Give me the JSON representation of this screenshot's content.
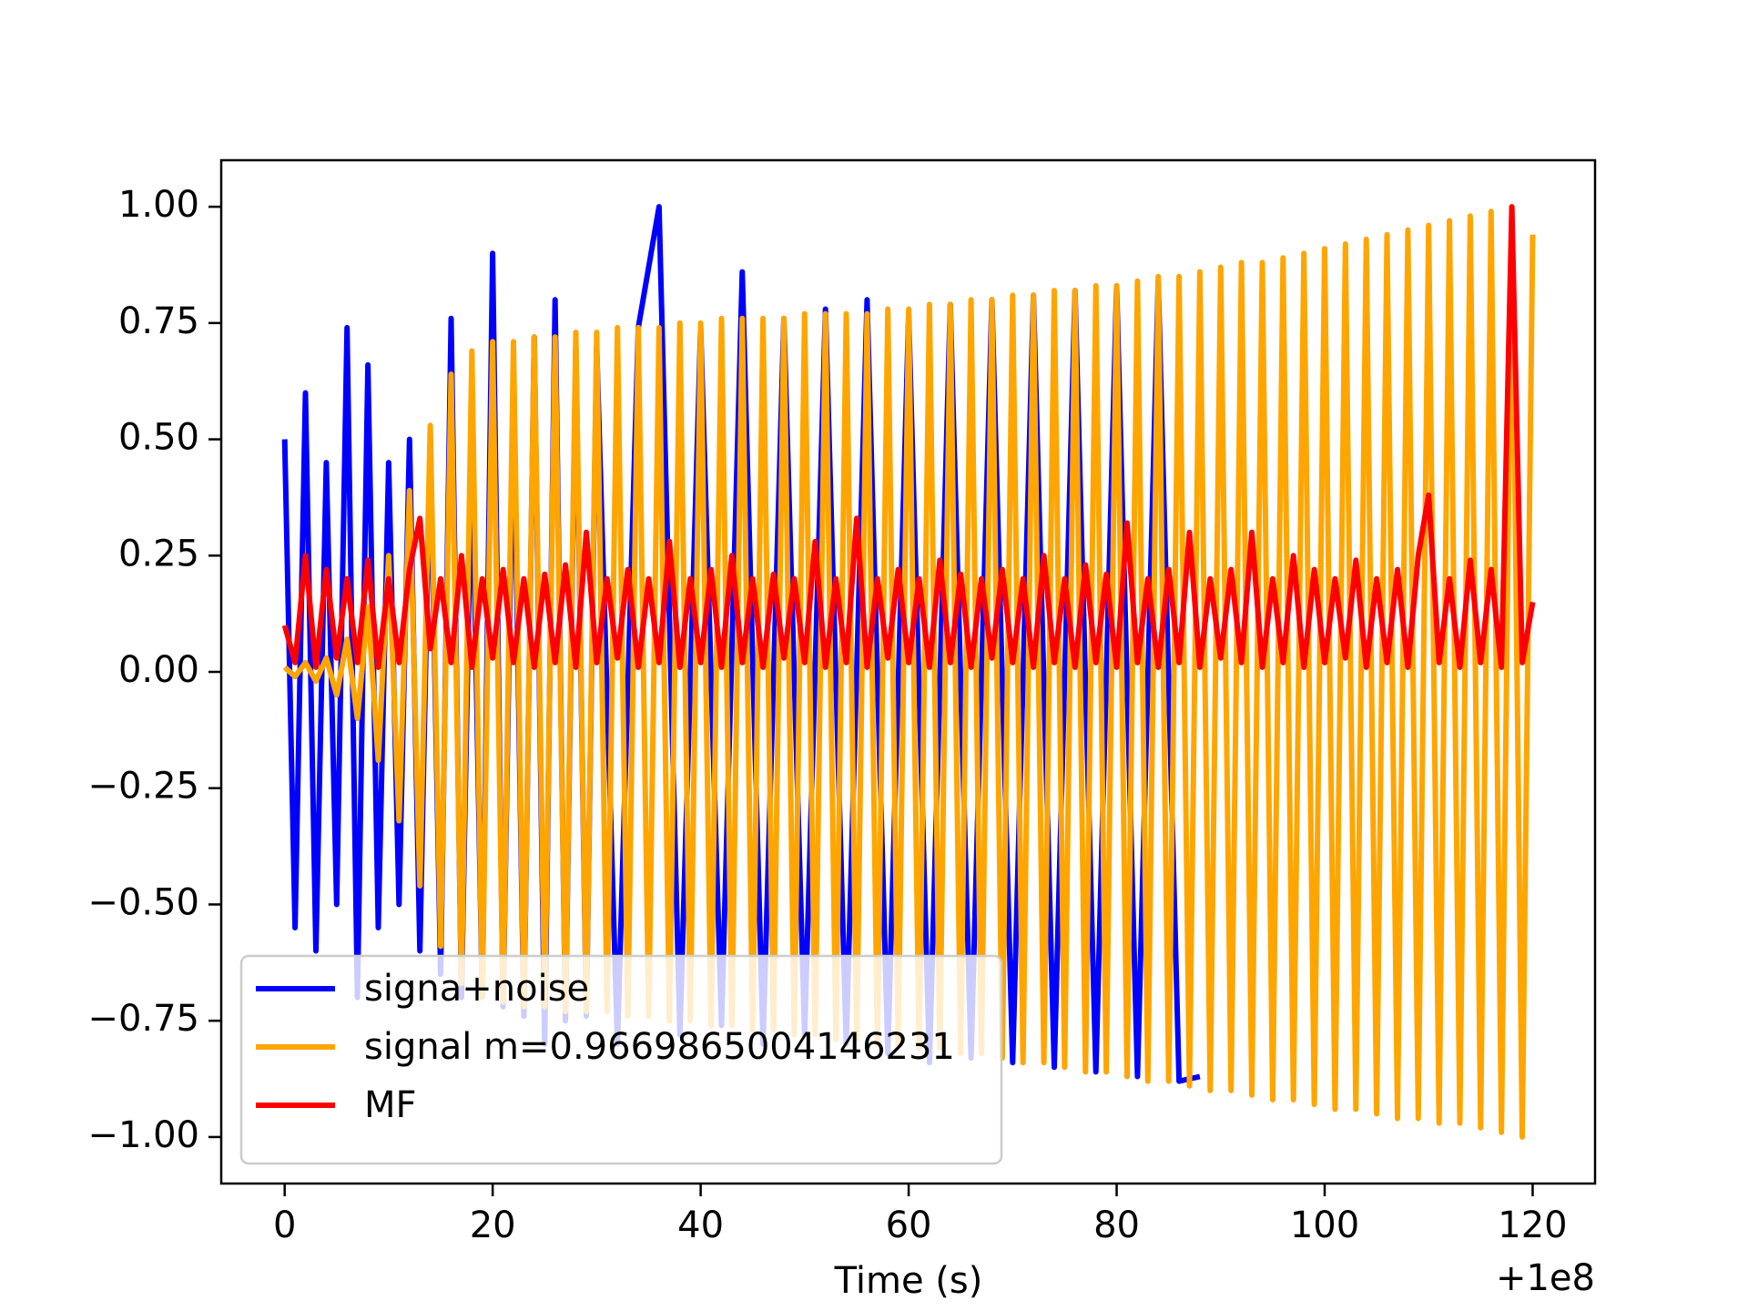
{
  "chart_data": {
    "type": "line",
    "xlabel": "Time (s)",
    "x_offset_label": "+1e8",
    "xlim": [
      -6.1,
      126
    ],
    "xticks": [
      0,
      20,
      40,
      60,
      80,
      100,
      120
    ],
    "ylim": [
      -1.1,
      1.1
    ],
    "yticks": [
      {
        "value": -1.0,
        "label": "−1.00"
      },
      {
        "value": -0.75,
        "label": "−0.75"
      },
      {
        "value": -0.5,
        "label": "−0.50"
      },
      {
        "value": -0.25,
        "label": "−0.25"
      },
      {
        "value": 0.0,
        "label": "0.00"
      },
      {
        "value": 0.25,
        "label": "0.25"
      },
      {
        "value": 0.5,
        "label": "0.50"
      },
      {
        "value": 0.75,
        "label": "0.75"
      },
      {
        "value": 1.0,
        "label": "1.00"
      }
    ],
    "grid": false,
    "legend": "lower left",
    "series": [
      {
        "name": "signa+noise",
        "color": "#0000ff",
        "x": [
          0,
          1,
          2,
          3,
          4,
          5,
          6,
          7,
          8,
          9,
          10,
          11,
          12,
          13,
          14,
          15,
          16,
          17,
          18,
          19,
          20,
          21,
          22,
          23,
          24,
          25,
          26,
          27,
          28,
          29,
          30,
          32,
          34,
          36,
          38,
          40,
          42,
          44,
          46,
          48,
          50,
          52,
          54,
          56,
          58,
          60,
          62,
          64,
          66,
          68,
          70,
          72,
          74,
          76,
          78,
          80,
          82,
          84,
          86,
          88
        ],
        "values": [
          0.5,
          -0.55,
          0.6,
          -0.6,
          0.45,
          -0.5,
          0.74,
          -0.7,
          0.66,
          -0.55,
          0.45,
          -0.5,
          0.5,
          -0.6,
          0.5,
          -0.65,
          0.76,
          -0.7,
          0.5,
          -0.7,
          0.9,
          -0.72,
          0.6,
          -0.74,
          0.72,
          -0.8,
          0.8,
          -0.75,
          0.7,
          -0.74,
          0.7,
          -0.8,
          0.74,
          1.0,
          -0.78,
          0.74,
          -0.76,
          0.86,
          -0.8,
          0.76,
          -0.78,
          0.78,
          -0.8,
          0.8,
          -0.82,
          0.77,
          -0.84,
          0.79,
          -0.83,
          0.8,
          -0.84,
          0.81,
          -0.85,
          0.82,
          -0.86,
          0.83,
          -0.87,
          0.84,
          -0.88,
          -0.87
        ]
      },
      {
        "name": "signal m=0.9669865004146231",
        "color": "#ffa500",
        "x": [
          0,
          1,
          2,
          3,
          4,
          5,
          6,
          7,
          8,
          9,
          10,
          11,
          12,
          13,
          14,
          15,
          16,
          17,
          18,
          19,
          20,
          21,
          22,
          23,
          24,
          25,
          26,
          27,
          28,
          29,
          30,
          31,
          32,
          33,
          34,
          35,
          36,
          37,
          38,
          39,
          40,
          41,
          42,
          43,
          44,
          45,
          46,
          47,
          48,
          49,
          50,
          51,
          52,
          53,
          54,
          55,
          56,
          57,
          58,
          59,
          60,
          61,
          62,
          63,
          64,
          65,
          66,
          67,
          68,
          69,
          70,
          71,
          72,
          73,
          74,
          75,
          76,
          77,
          78,
          79,
          80,
          81,
          82,
          83,
          84,
          85,
          86,
          87,
          88,
          89,
          90,
          91,
          92,
          93,
          94,
          95,
          96,
          97,
          98,
          99,
          100,
          101,
          102,
          103,
          104,
          105,
          106,
          107,
          108,
          109,
          110,
          111,
          112,
          113,
          114,
          115,
          116,
          117,
          118,
          119,
          120
        ],
        "values": [
          0.01,
          -0.01,
          0.02,
          -0.02,
          0.03,
          -0.05,
          0.07,
          -0.1,
          0.14,
          -0.19,
          0.25,
          -0.32,
          0.39,
          -0.46,
          0.53,
          -0.59,
          0.64,
          -0.67,
          0.69,
          -0.7,
          0.71,
          -0.71,
          0.71,
          -0.72,
          0.72,
          -0.72,
          0.72,
          -0.73,
          0.73,
          -0.73,
          0.73,
          -0.73,
          0.74,
          -0.74,
          0.74,
          -0.74,
          0.74,
          -0.75,
          0.75,
          -0.75,
          0.75,
          -0.76,
          0.76,
          -0.76,
          0.76,
          -0.77,
          0.76,
          -0.77,
          0.76,
          -0.78,
          0.77,
          -0.78,
          0.77,
          -0.79,
          0.77,
          -0.79,
          0.77,
          -0.8,
          0.78,
          -0.8,
          0.78,
          -0.81,
          0.79,
          -0.81,
          0.79,
          -0.82,
          0.8,
          -0.82,
          0.8,
          -0.83,
          0.81,
          -0.84,
          0.81,
          -0.84,
          0.82,
          -0.85,
          0.82,
          -0.86,
          0.83,
          -0.86,
          0.83,
          -0.87,
          0.84,
          -0.88,
          0.85,
          -0.88,
          0.85,
          -0.89,
          0.86,
          -0.9,
          0.87,
          -0.9,
          0.88,
          -0.91,
          0.88,
          -0.92,
          0.89,
          -0.92,
          0.9,
          -0.93,
          0.91,
          -0.94,
          0.92,
          -0.94,
          0.93,
          -0.95,
          0.94,
          -0.96,
          0.95,
          -0.96,
          0.96,
          -0.97,
          0.97,
          -0.97,
          0.98,
          -0.98,
          0.99,
          -0.99,
          1.0,
          -1.0,
          0.94
        ]
      },
      {
        "name": "MF",
        "color": "#ff0000",
        "x": [
          0,
          1,
          2,
          3,
          4,
          5,
          6,
          7,
          8,
          9,
          10,
          11,
          12,
          13,
          14,
          15,
          16,
          17,
          18,
          19,
          20,
          21,
          22,
          23,
          24,
          25,
          26,
          27,
          28,
          29,
          30,
          31,
          32,
          33,
          34,
          35,
          36,
          37,
          38,
          39,
          40,
          41,
          42,
          43,
          44,
          45,
          46,
          47,
          48,
          49,
          50,
          51,
          52,
          53,
          54,
          55,
          56,
          57,
          58,
          59,
          60,
          61,
          62,
          63,
          64,
          65,
          66,
          67,
          68,
          69,
          70,
          71,
          72,
          73,
          74,
          75,
          76,
          77,
          78,
          79,
          80,
          81,
          82,
          83,
          84,
          85,
          86,
          87,
          88,
          89,
          90,
          91,
          92,
          93,
          94,
          95,
          96,
          97,
          98,
          99,
          100,
          101,
          102,
          103,
          104,
          105,
          106,
          107,
          108,
          109,
          110,
          111,
          112,
          113,
          114,
          115,
          116,
          117,
          118,
          119,
          120
        ],
        "values": [
          0.1,
          0.02,
          0.25,
          0.01,
          0.22,
          0.03,
          0.2,
          0.02,
          0.24,
          0.01,
          0.2,
          0.02,
          0.22,
          0.33,
          0.05,
          0.2,
          0.02,
          0.25,
          0.01,
          0.2,
          0.03,
          0.22,
          0.02,
          0.2,
          0.01,
          0.21,
          0.02,
          0.23,
          0.01,
          0.3,
          0.02,
          0.2,
          0.03,
          0.22,
          0.01,
          0.2,
          0.02,
          0.28,
          0.01,
          0.2,
          0.02,
          0.22,
          0.01,
          0.25,
          0.02,
          0.2,
          0.01,
          0.21,
          0.03,
          0.2,
          0.02,
          0.28,
          0.01,
          0.2,
          0.02,
          0.33,
          0.01,
          0.2,
          0.03,
          0.22,
          0.02,
          0.2,
          0.01,
          0.24,
          0.02,
          0.21,
          0.01,
          0.2,
          0.03,
          0.22,
          0.02,
          0.2,
          0.01,
          0.25,
          0.02,
          0.2,
          0.01,
          0.23,
          0.02,
          0.21,
          0.01,
          0.32,
          0.02,
          0.2,
          0.01,
          0.22,
          0.02,
          0.3,
          0.01,
          0.2,
          0.03,
          0.22,
          0.02,
          0.3,
          0.01,
          0.2,
          0.02,
          0.25,
          0.01,
          0.22,
          0.02,
          0.2,
          0.03,
          0.24,
          0.01,
          0.2,
          0.02,
          0.22,
          0.01,
          0.25,
          0.38,
          0.02,
          0.2,
          0.01,
          0.24,
          0.02,
          0.22,
          0.01,
          1.0,
          0.02,
          0.15
        ]
      }
    ]
  }
}
